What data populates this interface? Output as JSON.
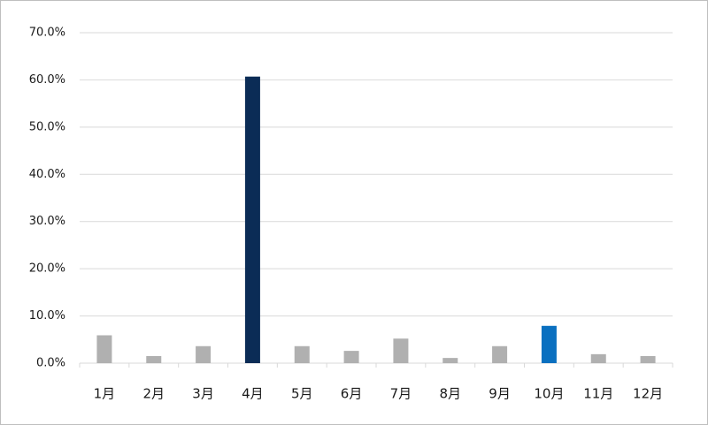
{
  "chart_data": {
    "type": "bar",
    "categories": [
      "1月",
      "2月",
      "3月",
      "4月",
      "5月",
      "6月",
      "7月",
      "8月",
      "9月",
      "10月",
      "11月",
      "12月"
    ],
    "values": [
      5.9,
      1.5,
      3.6,
      60.7,
      3.6,
      2.6,
      5.2,
      1.1,
      3.6,
      7.9,
      1.9,
      1.5
    ],
    "colors": [
      "#b0b0b0",
      "#b0b0b0",
      "#b0b0b0",
      "#0b2c56",
      "#b0b0b0",
      "#b0b0b0",
      "#b0b0b0",
      "#b0b0b0",
      "#b0b0b0",
      "#0a70c0",
      "#b0b0b0",
      "#b0b0b0"
    ],
    "ylim": [
      0,
      70
    ],
    "yticks": [
      {
        "value": 0,
        "label": "0.0%"
      },
      {
        "value": 10,
        "label": "10.0%"
      },
      {
        "value": 20,
        "label": "20.0%"
      },
      {
        "value": 30,
        "label": "30.0%"
      },
      {
        "value": 40,
        "label": "40.0%"
      },
      {
        "value": 50,
        "label": "50.0%"
      },
      {
        "value": 60,
        "label": "60.0%"
      },
      {
        "value": 70,
        "label": "70.0%"
      }
    ],
    "grid": true
  }
}
